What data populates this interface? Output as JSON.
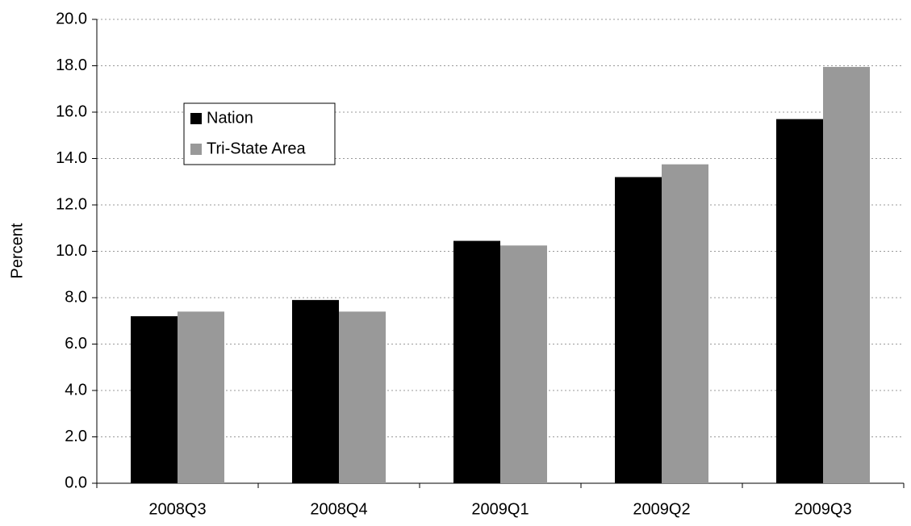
{
  "chart_data": {
    "type": "bar",
    "y_label": "Percent",
    "categories": [
      "2008Q3",
      "2008Q4",
      "2009Q1",
      "2009Q2",
      "2009Q3"
    ],
    "series": [
      {
        "name": "Nation",
        "color": "#000000",
        "values": [
          7.2,
          7.9,
          10.45,
          13.2,
          15.7
        ]
      },
      {
        "name": "Tri-State Area",
        "color": "#999999",
        "values": [
          7.4,
          7.4,
          10.25,
          13.75,
          17.95
        ]
      }
    ],
    "ylim": [
      0,
      20
    ],
    "yticks": [
      {
        "value": 0,
        "label": "0.0"
      },
      {
        "value": 2,
        "label": "2.0"
      },
      {
        "value": 4,
        "label": "4.0"
      },
      {
        "value": 6,
        "label": "6.0"
      },
      {
        "value": 8,
        "label": "8.0"
      },
      {
        "value": 10,
        "label": "10.0"
      },
      {
        "value": 12,
        "label": "12.0"
      },
      {
        "value": 14,
        "label": "14.0"
      },
      {
        "value": 16,
        "label": "16.0"
      },
      {
        "value": 18,
        "label": "18.0"
      },
      {
        "value": 20,
        "label": "20.0"
      }
    ],
    "grid": true,
    "legend": "upper left"
  }
}
